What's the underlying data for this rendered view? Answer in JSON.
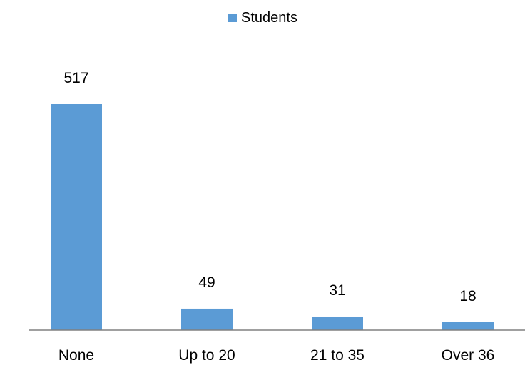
{
  "chart_data": {
    "type": "bar",
    "categories": [
      "None",
      "Up to 20",
      "21 to 35",
      "Over 36"
    ],
    "series": [
      {
        "name": "Students",
        "values": [
          517,
          49,
          31,
          18
        ]
      }
    ],
    "data_labels": [
      "517",
      "49",
      "31",
      "18"
    ],
    "title": "",
    "xlabel": "",
    "ylabel": "",
    "ylim": [
      0,
      517
    ],
    "grid": false,
    "legend_position": "top-center",
    "bar_color": "#5B9BD5",
    "axis_color": "#808080"
  }
}
